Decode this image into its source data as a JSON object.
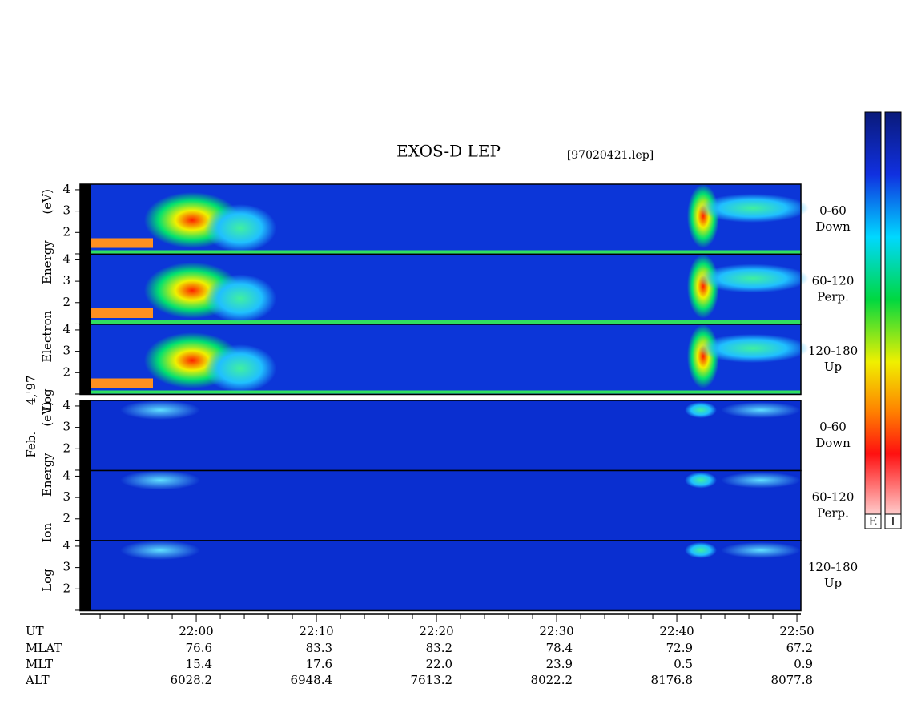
{
  "title": "EXOS-D LEP",
  "file": "[97020421.lep]",
  "date": "Feb. 4,'97",
  "electron_label": "Log Electron Energy (eV)",
  "ion_label": "Log Ion Energy (eV)",
  "ylim": [
    0.98,
    4.26
  ],
  "yticks": [
    2,
    3,
    4
  ],
  "minor_yticks": [
    1
  ],
  "panels": [
    {
      "group": "electron",
      "angle": "0-60",
      "direction": "Down"
    },
    {
      "group": "electron",
      "angle": "60-120",
      "direction": "Perp."
    },
    {
      "group": "electron",
      "angle": "120-180",
      "direction": "Up"
    },
    {
      "group": "ion",
      "angle": "0-60",
      "direction": "Down"
    },
    {
      "group": "ion",
      "angle": "60-120",
      "direction": "Perp."
    },
    {
      "group": "ion",
      "angle": "120-180",
      "direction": "Up"
    }
  ],
  "xlim": [
    1310.33,
    1370.33
  ],
  "xticks": [
    {
      "value": 1320,
      "label": "22:00"
    },
    {
      "value": 1330,
      "label": "22:10"
    },
    {
      "value": 1340,
      "label": "22:20"
    },
    {
      "value": 1350,
      "label": "22:30"
    },
    {
      "value": 1360,
      "label": "22:40"
    },
    {
      "value": 1370,
      "label": "22:50"
    }
  ],
  "minor_xticks": [
    1312,
    1314,
    1316,
    1318,
    1322,
    1324,
    1326,
    1328,
    1332,
    1334,
    1336,
    1338,
    1342,
    1344,
    1346,
    1348,
    1352,
    1354,
    1356,
    1358,
    1362,
    1364,
    1366,
    1368
  ],
  "ephemeris": {
    "axis_name": "UT",
    "rows": [
      {
        "name": "MLAT",
        "values": [
          "76.6",
          "83.3",
          "83.2",
          "78.4",
          "72.9",
          "67.2"
        ]
      },
      {
        "name": "MLT",
        "values": [
          "15.4",
          "17.6",
          "22.0",
          "23.9",
          "0.5",
          "0.9"
        ]
      },
      {
        "name": "ALT",
        "values": [
          "6028.2",
          "6948.4",
          "7613.2",
          "8022.2",
          "8176.8",
          "8077.8"
        ]
      }
    ]
  },
  "colorbars": [
    "E",
    "I"
  ]
}
